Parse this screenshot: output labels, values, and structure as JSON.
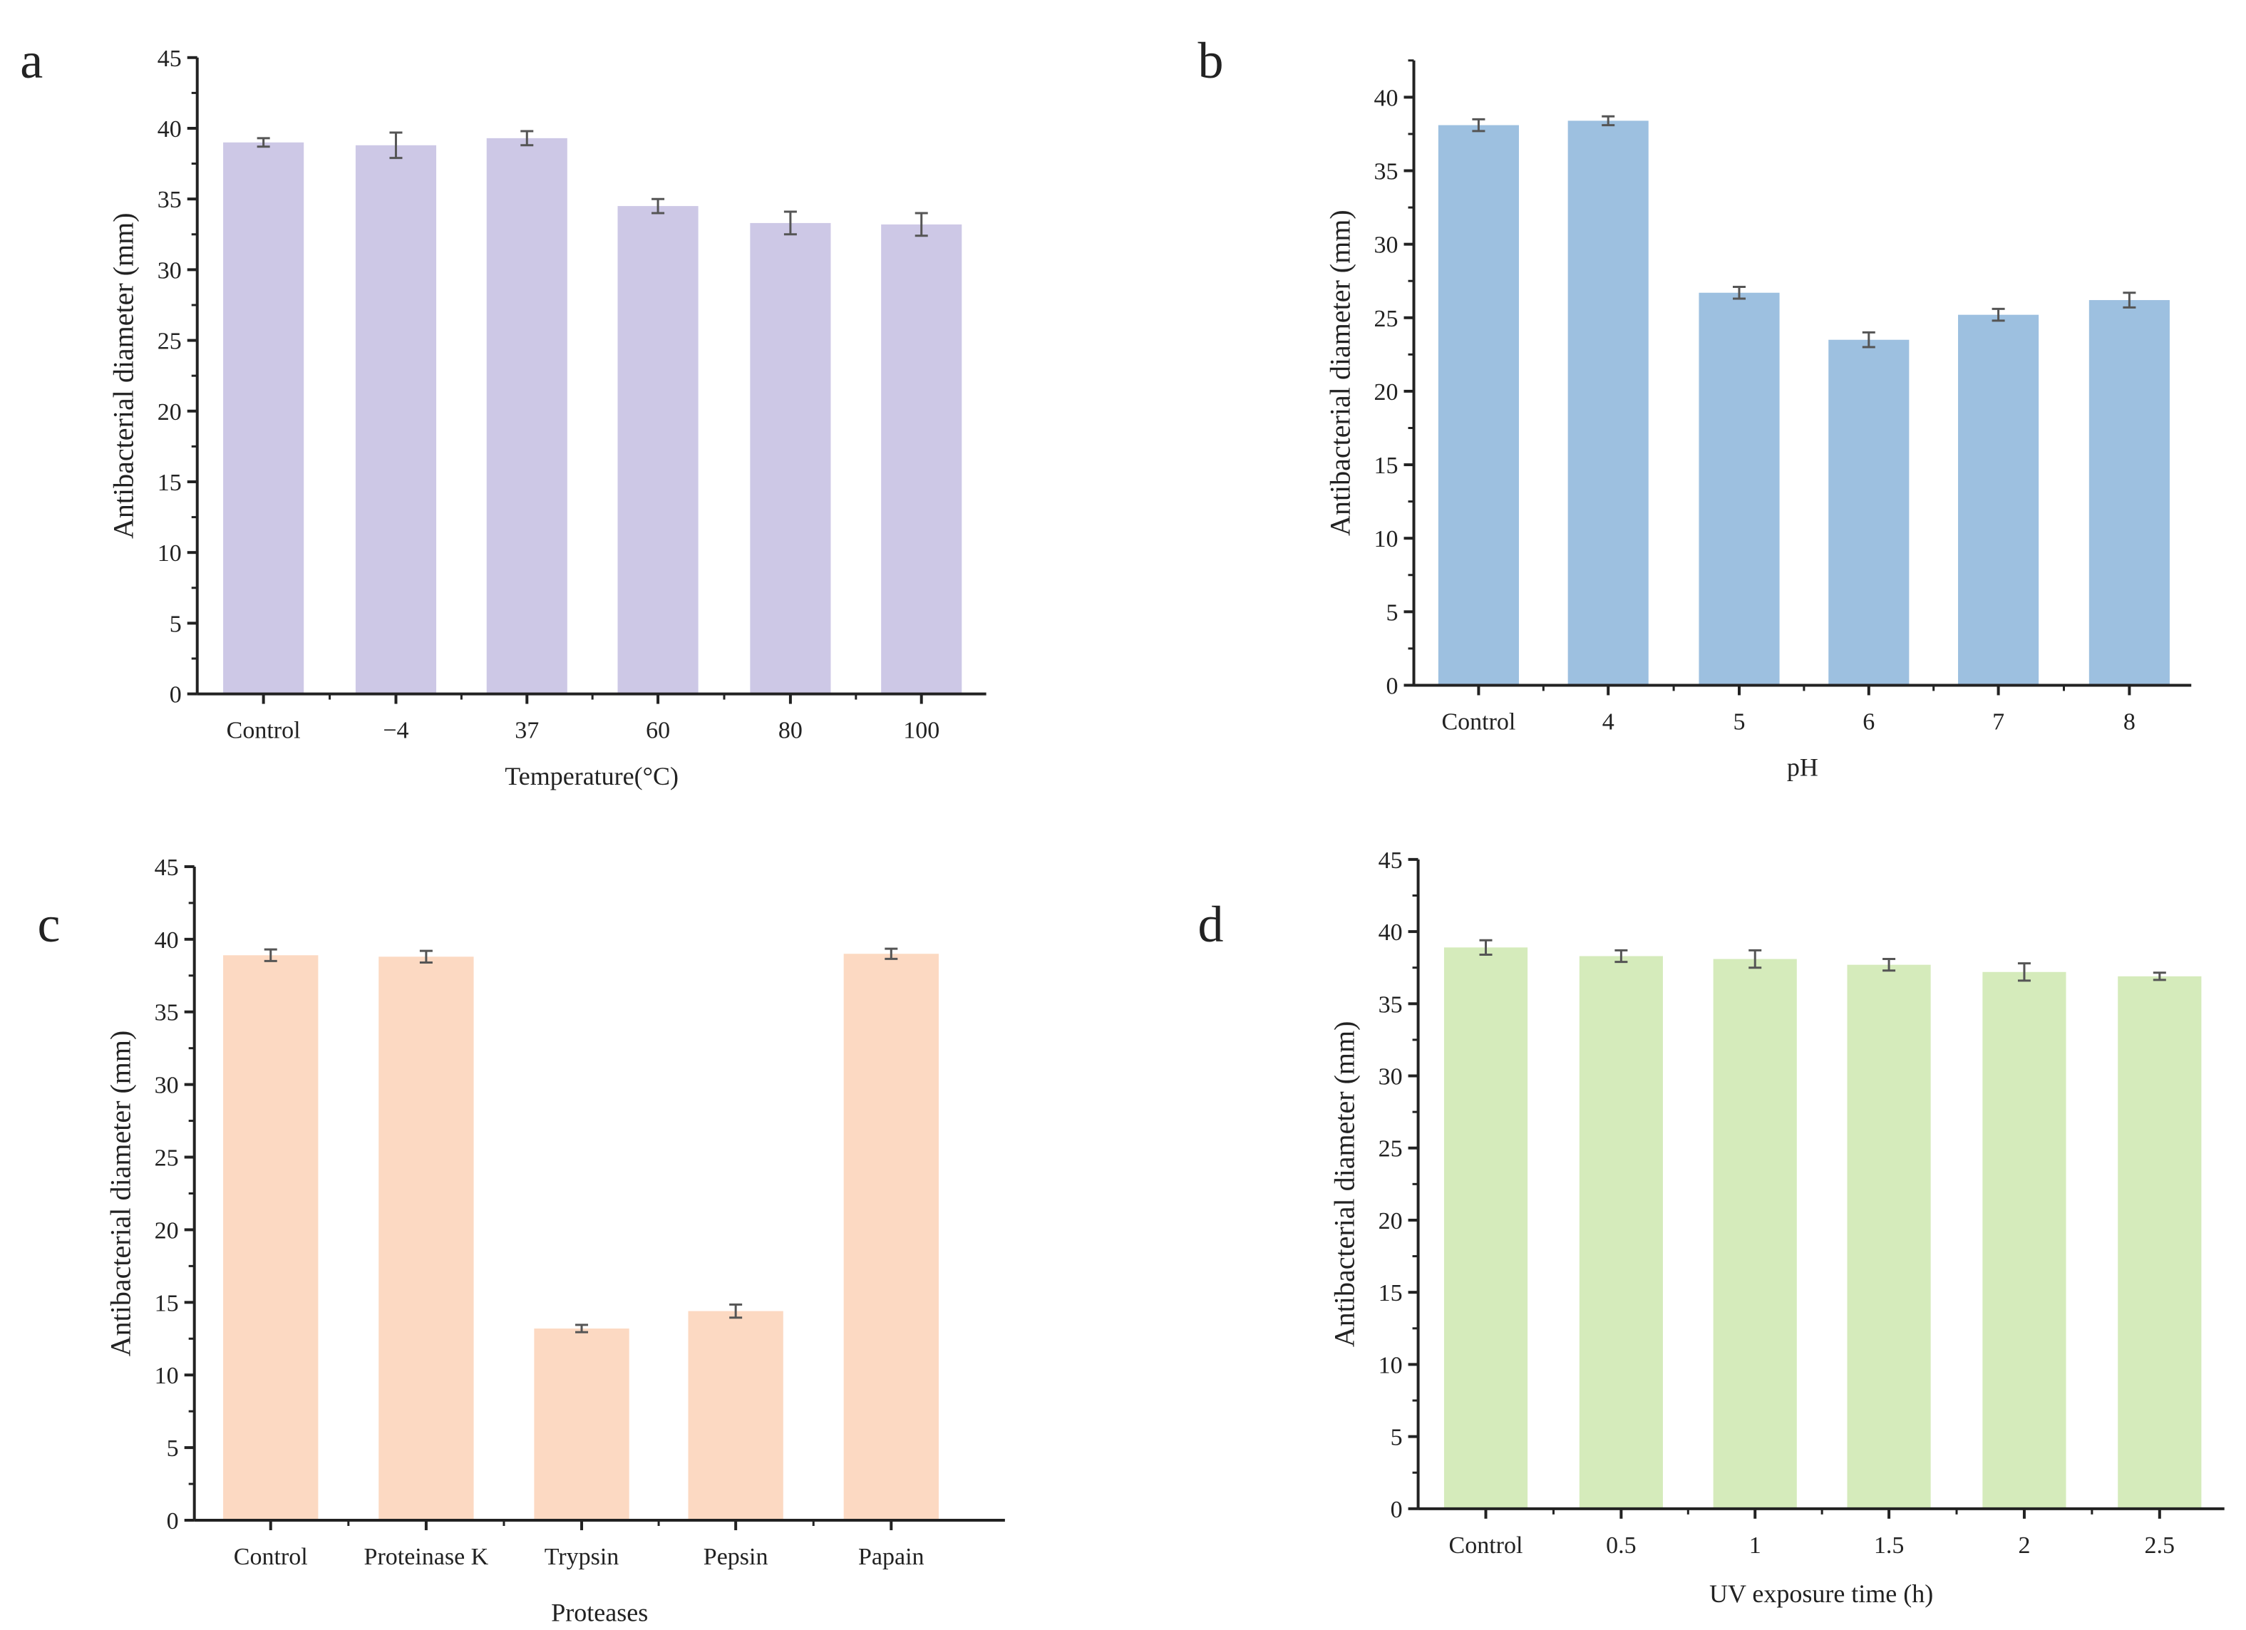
{
  "chart_data": [
    {
      "panel_label": "a",
      "type": "bar",
      "title": "",
      "xlabel": "Temperature(°C)",
      "ylabel": "Antibacterial diameter (mm)",
      "categories": [
        "Control",
        "−4",
        "37",
        "60",
        "80",
        "100"
      ],
      "values": [
        39.0,
        38.8,
        39.3,
        34.5,
        33.3,
        33.2
      ],
      "errors": [
        0.3,
        0.9,
        0.5,
        0.5,
        0.8,
        0.8
      ],
      "ylim": [
        0,
        45
      ],
      "yticks": [
        0,
        5,
        10,
        15,
        20,
        25,
        30,
        35,
        40,
        45
      ],
      "color": "#CDC8E6",
      "grid": false
    },
    {
      "panel_label": "b",
      "type": "bar",
      "title": "",
      "xlabel": "pH",
      "ylabel": "Antibacterial diameter (mm)",
      "categories": [
        "Control",
        "4",
        "5",
        "6",
        "7",
        "8"
      ],
      "values": [
        38.1,
        38.4,
        26.7,
        23.5,
        25.2,
        26.2
      ],
      "errors": [
        0.4,
        0.3,
        0.4,
        0.5,
        0.4,
        0.5
      ],
      "ylim": [
        0,
        42.5
      ],
      "yticks": [
        0,
        5,
        10,
        15,
        20,
        25,
        30,
        35,
        40
      ],
      "color": "#9DC0E0",
      "grid": false
    },
    {
      "panel_label": "c",
      "type": "bar",
      "title": "",
      "xlabel": "Proteases",
      "ylabel": "Antibacterial diameter (mm)",
      "categories": [
        "Control",
        "Proteinase K",
        "Trypsin",
        "Pepsin",
        "Papain"
      ],
      "values": [
        38.9,
        38.8,
        13.2,
        14.4,
        39.0
      ],
      "errors": [
        0.4,
        0.4,
        0.25,
        0.45,
        0.35
      ],
      "ylim": [
        0,
        45
      ],
      "yticks": [
        0,
        5,
        10,
        15,
        20,
        25,
        30,
        35,
        40,
        45
      ],
      "color": "#FCD9C2",
      "grid": false
    },
    {
      "panel_label": "d",
      "type": "bar",
      "title": "",
      "xlabel": "UV exposure time (h)",
      "ylabel": "Antibacterial diameter (mm)",
      "categories": [
        "Control",
        "0.5",
        "1",
        "1.5",
        "2",
        "2.5"
      ],
      "values": [
        38.9,
        38.3,
        38.1,
        37.7,
        37.2,
        36.9
      ],
      "errors": [
        0.5,
        0.4,
        0.6,
        0.4,
        0.6,
        0.25
      ],
      "ylim": [
        0,
        45
      ],
      "yticks": [
        0,
        5,
        10,
        15,
        20,
        25,
        30,
        35,
        40,
        45
      ],
      "color": "#D5EBBB",
      "grid": false
    }
  ]
}
